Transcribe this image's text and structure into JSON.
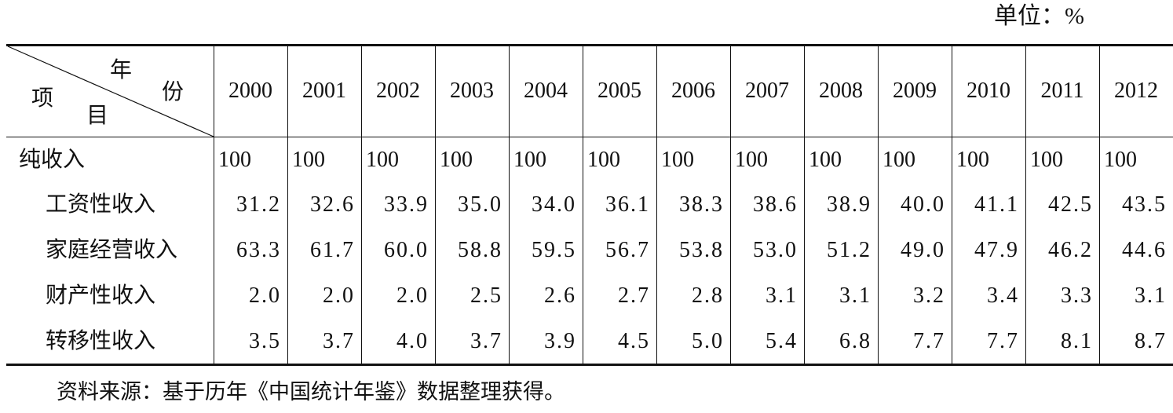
{
  "unit": "单位：%",
  "header": {
    "corner": {
      "year_top": "年",
      "year_bottom": "份",
      "item_left": "项",
      "item_bottom": "目"
    },
    "years": [
      "2000",
      "2001",
      "2002",
      "2003",
      "2004",
      "2005",
      "2006",
      "2007",
      "2008",
      "2009",
      "2010",
      "2011",
      "2012"
    ]
  },
  "table": {
    "rows": [
      {
        "label": "纯收入",
        "values": [
          "100",
          "100",
          "100",
          "100",
          "100",
          "100",
          "100",
          "100",
          "100",
          "100",
          "100",
          "100",
          "100"
        ]
      },
      {
        "label": "工资性收入",
        "values": [
          "31.2",
          "32.6",
          "33.9",
          "35.0",
          "34.0",
          "36.1",
          "38.3",
          "38.6",
          "38.9",
          "40.0",
          "41.1",
          "42.5",
          "43.5"
        ]
      },
      {
        "label": "家庭经营收入",
        "values": [
          "63.3",
          "61.7",
          "60.0",
          "58.8",
          "59.5",
          "56.7",
          "53.8",
          "53.0",
          "51.2",
          "49.0",
          "47.9",
          "46.2",
          "44.6"
        ]
      },
      {
        "label": "财产性收入",
        "values": [
          "2.0",
          "2.0",
          "2.0",
          "2.5",
          "2.6",
          "2.7",
          "2.8",
          "3.1",
          "3.1",
          "3.2",
          "3.4",
          "3.3",
          "3.1"
        ]
      },
      {
        "label": "转移性收入",
        "values": [
          "3.5",
          "3.7",
          "4.0",
          "3.7",
          "3.9",
          "4.5",
          "5.0",
          "5.4",
          "6.8",
          "7.7",
          "7.7",
          "8.1",
          "8.7"
        ]
      }
    ]
  },
  "source": "资料来源：基于历年《中国统计年鉴》数据整理获得。"
}
